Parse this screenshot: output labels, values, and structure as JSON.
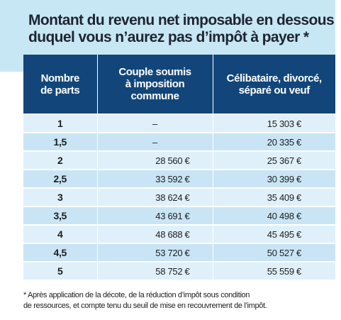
{
  "title": "Montant du revenu net imposable en dessous\nduquel vous n’aurez pas d’impôt à payer *",
  "table": {
    "headers": [
      "Nombre\nde parts",
      "Couple soumis\nà imposition\ncommune",
      "Célibataire, divorcé,\nséparé ou veuf"
    ],
    "rows": [
      {
        "parts": "1",
        "couple": "–",
        "single": "15 303 €"
      },
      {
        "parts": "1,5",
        "couple": "–",
        "single": "20 335 €"
      },
      {
        "parts": "2",
        "couple": "28 560 €",
        "single": "25 367 €"
      },
      {
        "parts": "2,5",
        "couple": "33 592 €",
        "single": "30 399 €"
      },
      {
        "parts": "3",
        "couple": "38 624 €",
        "single": "35 409 €"
      },
      {
        "parts": "3,5",
        "couple": "43 691 €",
        "single": "40 498 €"
      },
      {
        "parts": "4",
        "couple": "48 688 €",
        "single": "45 495 €"
      },
      {
        "parts": "4,5",
        "couple": "53 720 €",
        "single": "50 527 €"
      },
      {
        "parts": "5",
        "couple": "58 752 €",
        "single": "55 559 €"
      }
    ]
  },
  "footnote": "* Après application de la décote, de la réduction d’impôt sous condition\nde ressources, et compte tenu du seuil de mise en recouvrement de l’impôt.",
  "colors": {
    "title_background": "#c8e7f5",
    "header_background": "#12467a",
    "row_light": "#dff0fa",
    "row_dark": "#c9e5f5"
  }
}
